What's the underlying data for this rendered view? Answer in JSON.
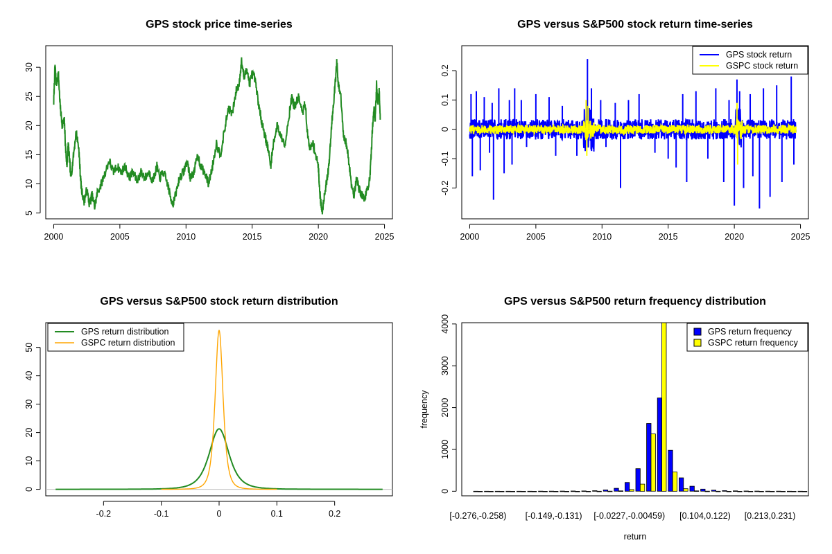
{
  "chart_data": [
    {
      "id": "price",
      "type": "line",
      "title": "GPS stock price time-series",
      "xlabel": "",
      "ylabel": "",
      "xlim": [
        1999.4,
        2025.6
      ],
      "ylim": [
        4.0,
        33.7
      ],
      "xticks": [
        2000,
        2005,
        2010,
        2015,
        2020,
        2025
      ],
      "yticks": [
        5,
        10,
        15,
        20,
        25,
        30
      ],
      "grid": false,
      "series": [
        {
          "color": "#228B22",
          "points": [
            [
              2000.0,
              24
            ],
            [
              2000.1,
              30.5
            ],
            [
              2000.2,
              27
            ],
            [
              2000.35,
              29
            ],
            [
              2000.5,
              23
            ],
            [
              2000.65,
              20
            ],
            [
              2000.8,
              21
            ],
            [
              2000.9,
              16
            ],
            [
              2001.0,
              13
            ],
            [
              2001.1,
              17
            ],
            [
              2001.2,
              14
            ],
            [
              2001.3,
              11
            ],
            [
              2001.5,
              15
            ],
            [
              2001.7,
              19
            ],
            [
              2001.9,
              16
            ],
            [
              2002.0,
              12
            ],
            [
              2002.1,
              9
            ],
            [
              2002.3,
              7
            ],
            [
              2002.5,
              9
            ],
            [
              2002.7,
              6.5
            ],
            [
              2002.9,
              8
            ],
            [
              2003.1,
              6
            ],
            [
              2003.3,
              8.5
            ],
            [
              2003.6,
              10
            ],
            [
              2003.9,
              12
            ],
            [
              2004.2,
              14
            ],
            [
              2004.5,
              12
            ],
            [
              2004.8,
              13
            ],
            [
              2005.1,
              12
            ],
            [
              2005.4,
              13
            ],
            [
              2005.7,
              11
            ],
            [
              2006.0,
              12
            ],
            [
              2006.3,
              10.5
            ],
            [
              2006.6,
              12
            ],
            [
              2006.9,
              11
            ],
            [
              2007.2,
              12
            ],
            [
              2007.5,
              10.5
            ],
            [
              2007.8,
              13
            ],
            [
              2008.0,
              11
            ],
            [
              2008.3,
              12
            ],
            [
              2008.6,
              10
            ],
            [
              2008.8,
              8
            ],
            [
              2009.0,
              6.5
            ],
            [
              2009.2,
              8
            ],
            [
              2009.5,
              11
            ],
            [
              2009.8,
              12
            ],
            [
              2010.1,
              14
            ],
            [
              2010.3,
              11
            ],
            [
              2010.6,
              12
            ],
            [
              2010.9,
              15
            ],
            [
              2011.1,
              13
            ],
            [
              2011.4,
              12
            ],
            [
              2011.7,
              10
            ],
            [
              2012.0,
              13
            ],
            [
              2012.3,
              17
            ],
            [
              2012.6,
              15
            ],
            [
              2012.9,
              19
            ],
            [
              2013.2,
              23
            ],
            [
              2013.5,
              22
            ],
            [
              2013.8,
              26
            ],
            [
              2014.0,
              27
            ],
            [
              2014.2,
              31
            ],
            [
              2014.4,
              28
            ],
            [
              2014.6,
              30
            ],
            [
              2014.8,
              27
            ],
            [
              2015.0,
              29
            ],
            [
              2015.2,
              28
            ],
            [
              2015.4,
              25
            ],
            [
              2015.6,
              22
            ],
            [
              2015.8,
              20
            ],
            [
              2016.0,
              18
            ],
            [
              2016.2,
              16
            ],
            [
              2016.4,
              13
            ],
            [
              2016.6,
              17
            ],
            [
              2016.9,
              20
            ],
            [
              2017.2,
              18
            ],
            [
              2017.5,
              17
            ],
            [
              2017.8,
              22
            ],
            [
              2018.0,
              25
            ],
            [
              2018.2,
              23
            ],
            [
              2018.5,
              25
            ],
            [
              2018.8,
              22
            ],
            [
              2019.0,
              24
            ],
            [
              2019.2,
              18
            ],
            [
              2019.4,
              16
            ],
            [
              2019.6,
              17
            ],
            [
              2019.8,
              15
            ],
            [
              2020.0,
              13
            ],
            [
              2020.1,
              9
            ],
            [
              2020.2,
              6.5
            ],
            [
              2020.3,
              5.2
            ],
            [
              2020.45,
              8
            ],
            [
              2020.6,
              10
            ],
            [
              2020.8,
              13
            ],
            [
              2021.0,
              20
            ],
            [
              2021.15,
              24
            ],
            [
              2021.3,
              28
            ],
            [
              2021.4,
              31
            ],
            [
              2021.5,
              27
            ],
            [
              2021.7,
              25
            ],
            [
              2021.9,
              18
            ],
            [
              2022.1,
              17
            ],
            [
              2022.3,
              14
            ],
            [
              2022.5,
              10
            ],
            [
              2022.7,
              8
            ],
            [
              2022.9,
              11
            ],
            [
              2023.1,
              9
            ],
            [
              2023.3,
              8
            ],
            [
              2023.5,
              7.5
            ],
            [
              2023.7,
              9
            ],
            [
              2023.9,
              11
            ],
            [
              2024.0,
              15
            ],
            [
              2024.1,
              20
            ],
            [
              2024.2,
              23
            ],
            [
              2024.3,
              21
            ],
            [
              2024.4,
              27
            ],
            [
              2024.5,
              24
            ],
            [
              2024.6,
              26
            ],
            [
              2024.68,
              21
            ]
          ]
        }
      ],
      "legend": null
    },
    {
      "id": "returns",
      "type": "line",
      "title": "GPS versus S&P500 stock return time-series",
      "xlabel": "",
      "ylabel": "",
      "xlim": [
        1999.4,
        2025.6
      ],
      "ylim": [
        -0.305,
        0.285
      ],
      "xticks": [
        2000,
        2005,
        2010,
        2015,
        2020,
        2025
      ],
      "yticks": [
        -0.2,
        -0.1,
        0.0,
        0.1,
        0.2
      ],
      "grid": false,
      "series": [
        {
          "name": "GPS stock return",
          "color": "#0000FF",
          "base_amplitude": 0.035,
          "spikes": [
            [
              2000.1,
              0.12
            ],
            [
              2000.2,
              -0.16
            ],
            [
              2000.5,
              0.13
            ],
            [
              2000.8,
              -0.14
            ],
            [
              2001.1,
              0.11
            ],
            [
              2001.5,
              -0.08
            ],
            [
              2001.7,
              0.09
            ],
            [
              2001.8,
              -0.24
            ],
            [
              2002.2,
              0.14
            ],
            [
              2002.6,
              -0.15
            ],
            [
              2003.0,
              0.1
            ],
            [
              2003.2,
              -0.12
            ],
            [
              2003.4,
              0.14
            ],
            [
              2003.9,
              0.1
            ],
            [
              2004.3,
              -0.06
            ],
            [
              2005.0,
              0.12
            ],
            [
              2006.0,
              0.11
            ],
            [
              2006.5,
              -0.09
            ],
            [
              2007.0,
              0.08
            ],
            [
              2008.1,
              -0.09
            ],
            [
              2008.9,
              0.24
            ],
            [
              2009.2,
              0.14
            ],
            [
              2009.9,
              0.1
            ],
            [
              2010.3,
              -0.06
            ],
            [
              2011.0,
              0.09
            ],
            [
              2011.4,
              -0.2
            ],
            [
              2012.0,
              0.1
            ],
            [
              2012.8,
              0.12
            ],
            [
              2014.0,
              -0.08
            ],
            [
              2015.0,
              -0.1
            ],
            [
              2015.6,
              -0.13
            ],
            [
              2016.1,
              0.12
            ],
            [
              2016.4,
              -0.18
            ],
            [
              2017.1,
              0.13
            ],
            [
              2018.0,
              -0.1
            ],
            [
              2018.6,
              0.14
            ],
            [
              2019.2,
              -0.18
            ],
            [
              2019.6,
              0.1
            ],
            [
              2020.0,
              -0.26
            ],
            [
              2020.2,
              0.17
            ],
            [
              2020.4,
              0.13
            ],
            [
              2020.7,
              -0.2
            ],
            [
              2021.2,
              0.12
            ],
            [
              2021.4,
              -0.16
            ],
            [
              2021.9,
              -0.27
            ],
            [
              2022.2,
              0.14
            ],
            [
              2022.7,
              -0.23
            ],
            [
              2023.2,
              0.15
            ],
            [
              2023.6,
              -0.18
            ],
            [
              2024.3,
              0.18
            ],
            [
              2024.5,
              -0.12
            ]
          ]
        },
        {
          "name": "GSPC stock return",
          "color": "#FFFF00",
          "base_amplitude": 0.015,
          "spikes": [
            [
              2008.8,
              0.1
            ],
            [
              2008.85,
              -0.09
            ],
            [
              2008.95,
              0.08
            ],
            [
              2020.2,
              0.09
            ],
            [
              2020.25,
              -0.12
            ]
          ]
        }
      ],
      "legend": "top-right"
    },
    {
      "id": "density",
      "type": "line",
      "title": "GPS versus S&P500 stock return distribution",
      "xlabel": "",
      "ylabel": "",
      "xlim": [
        -0.3,
        0.3
      ],
      "ylim": [
        -2.3,
        58.7
      ],
      "xticks": [
        -0.2,
        -0.1,
        0.0,
        0.1,
        0.2
      ],
      "yticks": [
        0,
        10,
        20,
        30,
        40,
        50
      ],
      "grid": false,
      "series": [
        {
          "name": "GPS return distribution",
          "color": "#228B22",
          "peak": 21.3,
          "sigma": 0.018,
          "range": [
            -0.283,
            0.283
          ]
        },
        {
          "name": "GSPC return distribution",
          "color": "#FFA500",
          "peak": 56.0,
          "sigma": 0.0072,
          "range": [
            -0.1,
            0.1
          ]
        }
      ],
      "baseline_color": "#BEBEBE",
      "legend": "top-left"
    },
    {
      "id": "hist",
      "type": "bar",
      "title": "GPS versus S&P500 return frequency distribution",
      "xlabel": "return",
      "ylabel": "frequency",
      "ylim": [
        -110,
        4030
      ],
      "yticks": [
        0,
        1000,
        2000,
        3000,
        4000
      ],
      "grid": false,
      "category_labels": [
        "[-0.276,-0.258)",
        "[-0.149,-0.131)",
        "[-0.0227,-0.00459)",
        "[0.104,0.122)",
        "[0.213,0.231)"
      ],
      "label_indices": [
        0,
        7,
        14,
        21,
        27
      ],
      "n_bins": 31,
      "series": [
        {
          "name": "GPS return frequency",
          "color": "#0000FF",
          "values": [
            1,
            1,
            1,
            1,
            1,
            1,
            2,
            3,
            4,
            6,
            8,
            12,
            30,
            70,
            210,
            540,
            1620,
            2230,
            980,
            320,
            120,
            50,
            25,
            15,
            10,
            6,
            4,
            3,
            2,
            1,
            1
          ]
        },
        {
          "name": "GSPC return frequency",
          "color": "#FFFF00",
          "values": [
            0,
            0,
            0,
            0,
            0,
            0,
            0,
            0,
            0,
            0,
            0,
            1,
            3,
            10,
            40,
            170,
            1370,
            4030,
            460,
            60,
            10,
            3,
            1,
            0,
            0,
            0,
            0,
            0,
            0,
            0,
            0
          ]
        }
      ],
      "legend": "top-right"
    }
  ]
}
